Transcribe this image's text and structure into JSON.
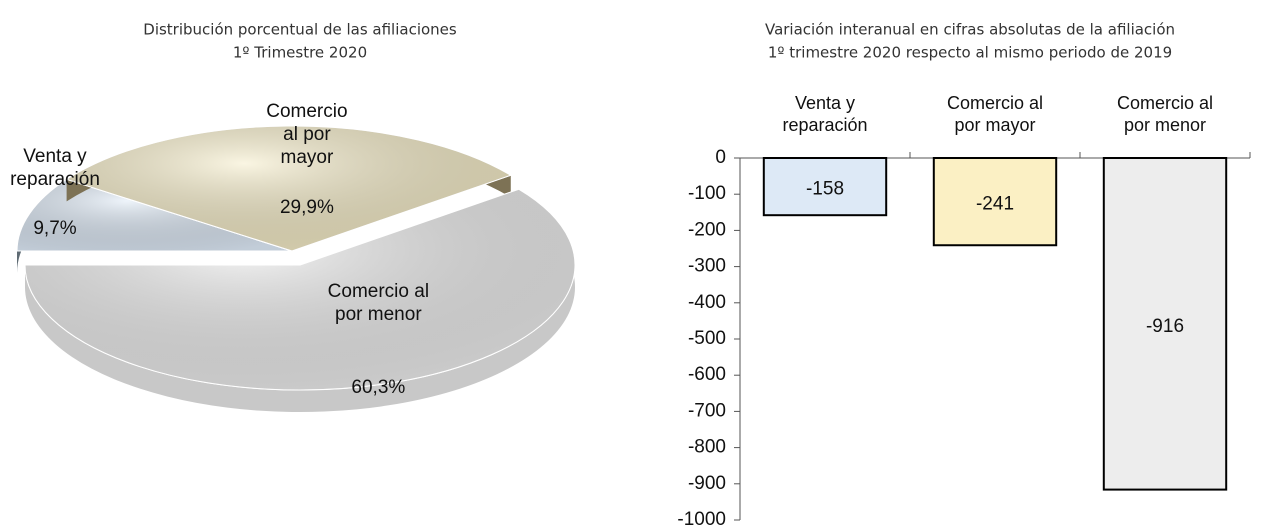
{
  "chart_data": [
    {
      "type": "pie",
      "title": "Distribución porcentual de las afiliaciones",
      "subtitle": "1º Trimestre 2020",
      "categories": [
        "Venta y reparación",
        "Comercio al por mayor",
        "Comercio al por menor"
      ],
      "values": [
        9.7,
        29.9,
        60.3
      ],
      "value_labels": [
        "9,7%",
        "29,9%",
        "60,3%"
      ],
      "colors": [
        "#dde9f6",
        "#f5ecc6",
        "#ececec"
      ]
    },
    {
      "type": "bar",
      "title": "Variación interanual en cifras absolutas de la afiliación",
      "subtitle": "1º trimestre 2020 respecto al mismo periodo de 2019",
      "categories": [
        "Venta y reparación",
        "Comercio al por mayor",
        "Comercio al por menor"
      ],
      "values": [
        -158,
        -241,
        -916
      ],
      "colors": [
        "#dde9f6",
        "#fbf0c4",
        "#ededed"
      ],
      "ylim": [
        -1000,
        0
      ],
      "yticks": [
        0,
        -100,
        -200,
        -300,
        -400,
        -500,
        -600,
        -700,
        -800,
        -900,
        -1000
      ]
    }
  ]
}
